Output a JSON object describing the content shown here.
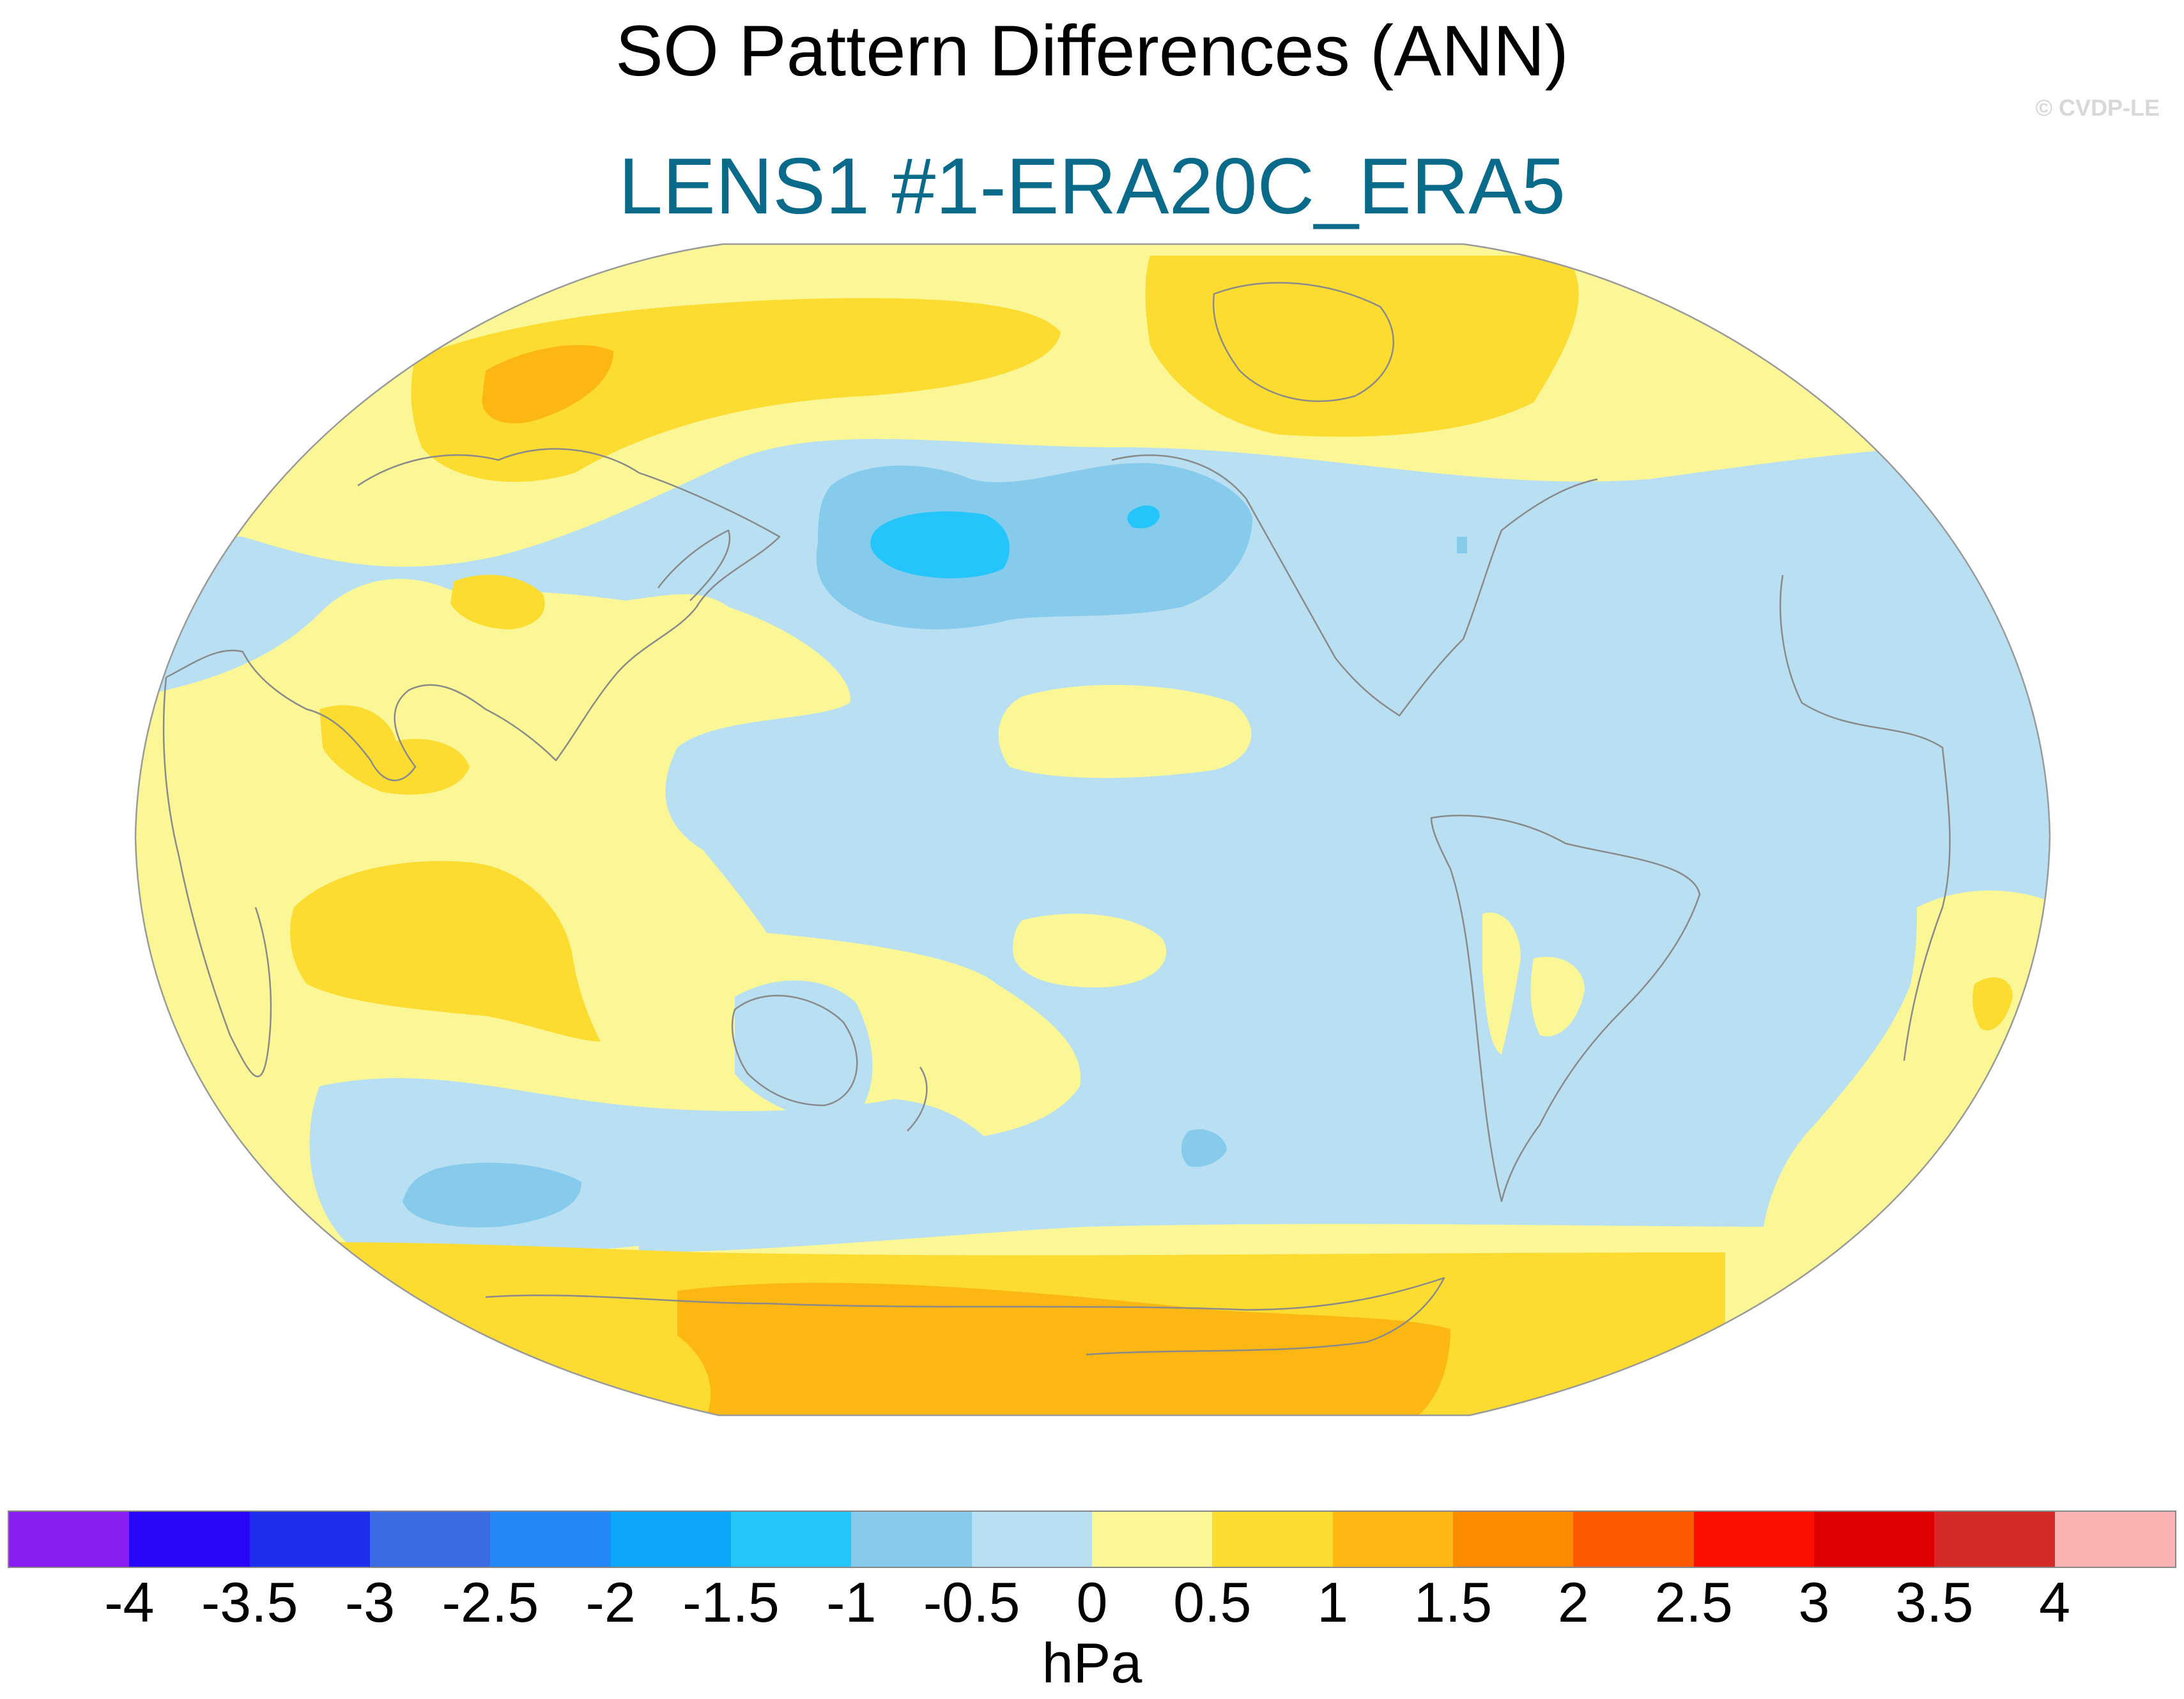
{
  "title": "SO Pattern Differences (ANN)",
  "subtitle": "LENS1 #1-ERA20C_ERA5",
  "credit": "© CVDP-LE",
  "colors": {
    "subtitle": "#0a6a8a",
    "ocean_base": "#b8e0f2",
    "map_edge": "#9a9a9a",
    "coastline": "#8a8a8a"
  },
  "map": {
    "projection": "Robinson",
    "center_longitude": "Pacific (180)",
    "field": "sea level pressure difference",
    "units": "hPa"
  },
  "colorbar": {
    "colors": [
      "#8a1df0",
      "#2a06f9",
      "#1e2fec",
      "#3b6ae3",
      "#2487f7",
      "#0ea6f8",
      "#23c5fa",
      "#86caec",
      "#b8e0f2",
      "#fbf797",
      "#fcdc31",
      "#fdb712",
      "#fd8b00",
      "#fd5a00",
      "#fd0f00",
      "#dc0000",
      "#d52829",
      "#fbb2b3"
    ],
    "labels": [
      "-4",
      "-3.5",
      "-3",
      "-2.5",
      "-2",
      "-1.5",
      "-1",
      "-0.5",
      "0",
      "0.5",
      "1",
      "1.5",
      "2",
      "2.5",
      "3",
      "3.5",
      "4"
    ],
    "units": "hPa"
  }
}
